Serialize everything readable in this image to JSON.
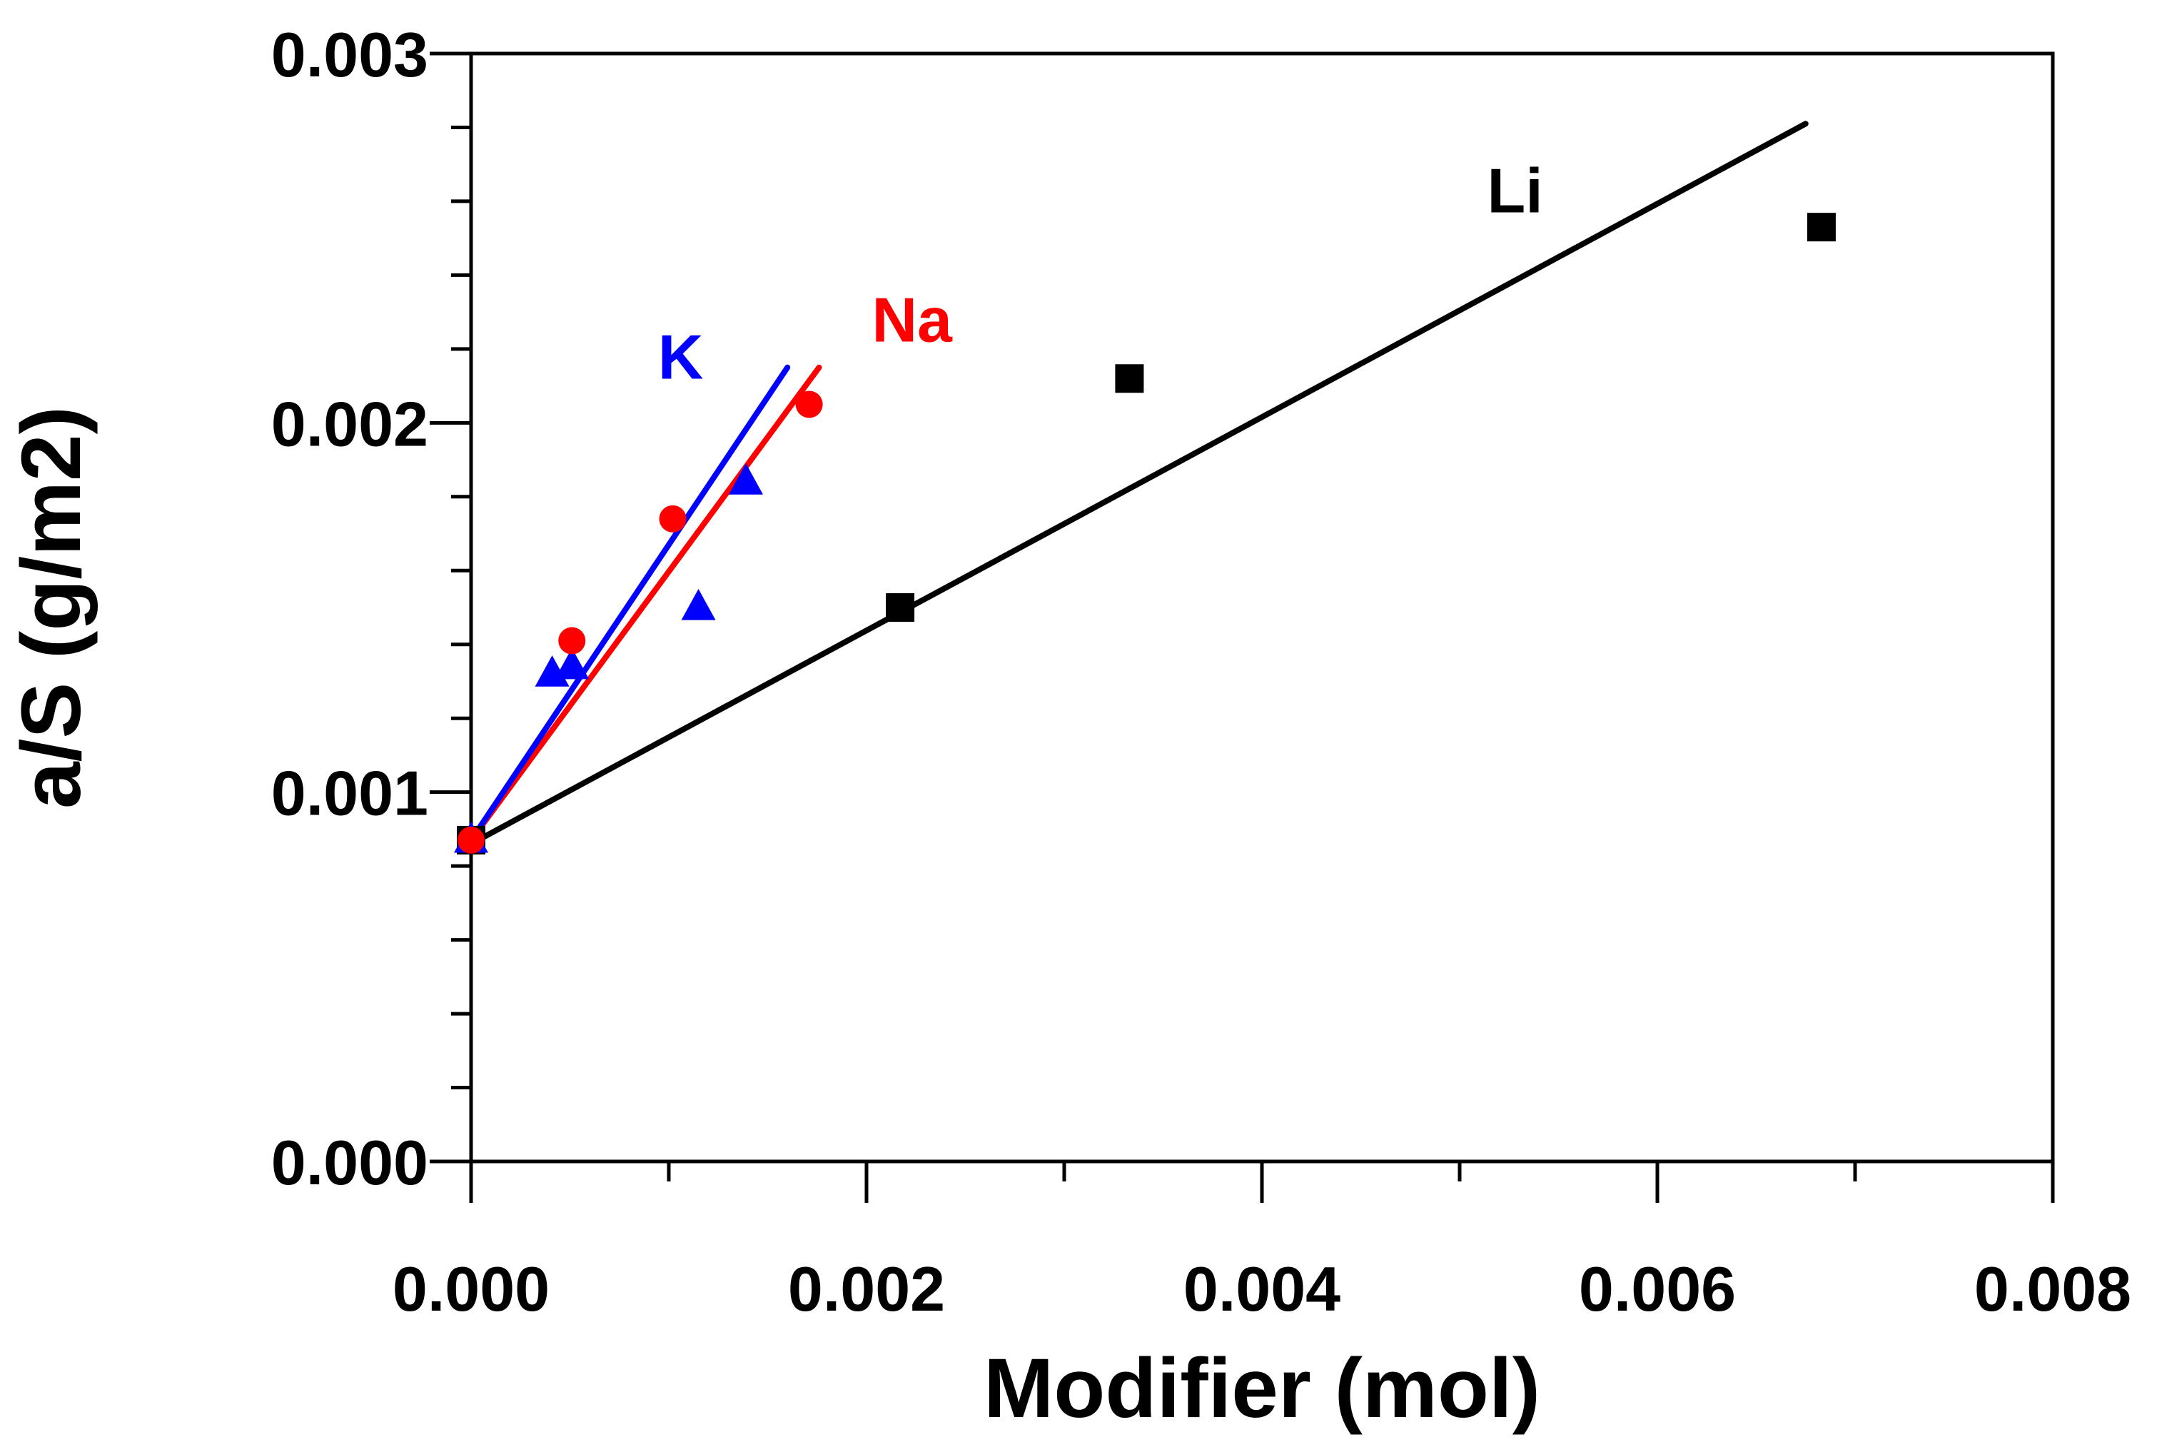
{
  "chart_data": {
    "type": "scatter",
    "title": "",
    "xlabel": "Modifier (mol)",
    "ylabel": "a/S (g/m2)",
    "xlim": [
      0,
      0.008
    ],
    "ylim": [
      0,
      0.003
    ],
    "x_ticks": [
      "0.000",
      "0.002",
      "0.004",
      "0.006",
      "0.008"
    ],
    "y_ticks": [
      "0.000",
      "0.001",
      "0.002",
      "0.003"
    ],
    "grid": false,
    "legend": "none (inline series labels)",
    "series": [
      {
        "name": "Li",
        "color": "#000000",
        "marker": "square",
        "x": [
          0.0,
          0.00217,
          0.00333,
          0.00683
        ],
        "y": [
          0.00087,
          0.0015,
          0.00212,
          0.00253
        ],
        "fit": {
          "x": [
            0.0,
            0.00675
          ],
          "y": [
            0.00086,
            0.00281
          ]
        }
      },
      {
        "name": "Na",
        "color": "#ff0000",
        "marker": "circle",
        "x": [
          0.0,
          0.00051,
          0.00102,
          0.00171
        ],
        "y": [
          0.00087,
          0.00141,
          0.00174,
          0.00205
        ],
        "fit": {
          "x": [
            0.0,
            0.00176
          ],
          "y": [
            0.00087,
            0.00215
          ]
        }
      },
      {
        "name": "K",
        "color": "#0000ff",
        "marker": "triangle",
        "x": [
          0.0,
          0.00041,
          0.00051,
          0.00115,
          0.00139
        ],
        "y": [
          0.00087,
          0.00132,
          0.00134,
          0.0015,
          0.00184
        ],
        "fit": {
          "x": [
            0.0,
            0.0016
          ],
          "y": [
            0.00087,
            0.00215
          ]
        }
      }
    ],
    "annotations": [
      {
        "text": "Li",
        "series": "Li",
        "color": "#000000",
        "x": 0.00528,
        "y": 0.00257
      },
      {
        "text": "Na",
        "series": "Na",
        "color": "#ff0000",
        "x": 0.00223,
        "y": 0.00222
      },
      {
        "text": "K",
        "series": "K",
        "color": "#0000ff",
        "x": 0.00106,
        "y": 0.00212
      }
    ]
  }
}
